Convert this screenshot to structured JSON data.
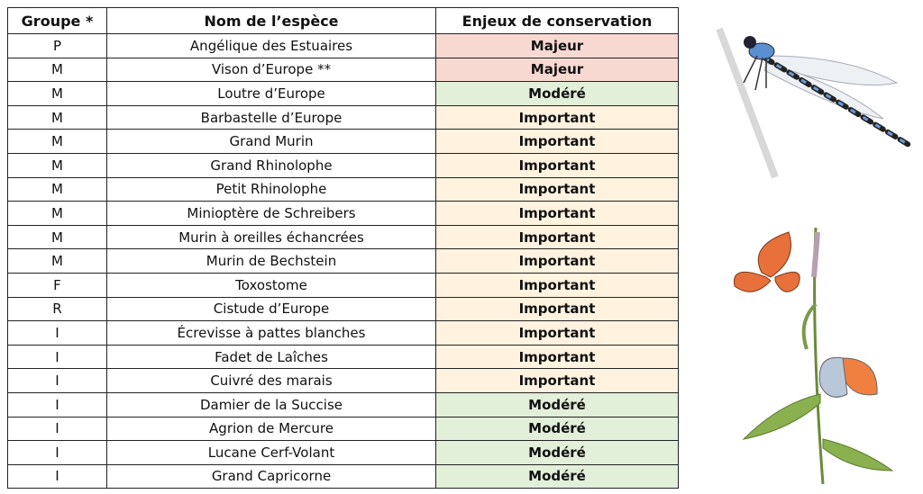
{
  "table": {
    "header": [
      "Groupe *",
      "Nom de l’espèce",
      "Enjeux de conservation"
    ],
    "rows": [
      [
        "P",
        "Angélique des Estuaires",
        "Majeur"
      ],
      [
        "M",
        "Vison d’Europe **",
        "Majeur"
      ],
      [
        "M",
        "Loutre d’Europe",
        "Modéré"
      ],
      [
        "M",
        "Barbastelle d’Europe",
        "Important"
      ],
      [
        "M",
        "Grand Murin",
        "Important"
      ],
      [
        "M",
        "Grand Rhinolophe",
        "Important"
      ],
      [
        "M",
        "Petit Rhinolophe",
        "Important"
      ],
      [
        "M",
        "Minioptère de Schreibers",
        "Important"
      ],
      [
        "M",
        "Murin à oreilles échancrées",
        "Important"
      ],
      [
        "M",
        "Murin de Bechstein",
        "Important"
      ],
      [
        "F",
        "Toxostome",
        "Important"
      ],
      [
        "R",
        "Cistude d’Europe",
        "Important"
      ],
      [
        "I",
        "Écrevisse à pattes blanches",
        "Important"
      ],
      [
        "I",
        "Fadet de Laîches",
        "Important"
      ],
      [
        "I",
        "Cuivré des marais",
        "Important"
      ],
      [
        "I",
        "Damier de la Succise",
        "Modéré"
      ],
      [
        "I",
        "Agrion de Mercure",
        "Modéré"
      ],
      [
        "I",
        "Lucane Cerf-Volant",
        "Modéré"
      ],
      [
        "I",
        "Grand Capricorne",
        "Modéré"
      ]
    ]
  }
}
